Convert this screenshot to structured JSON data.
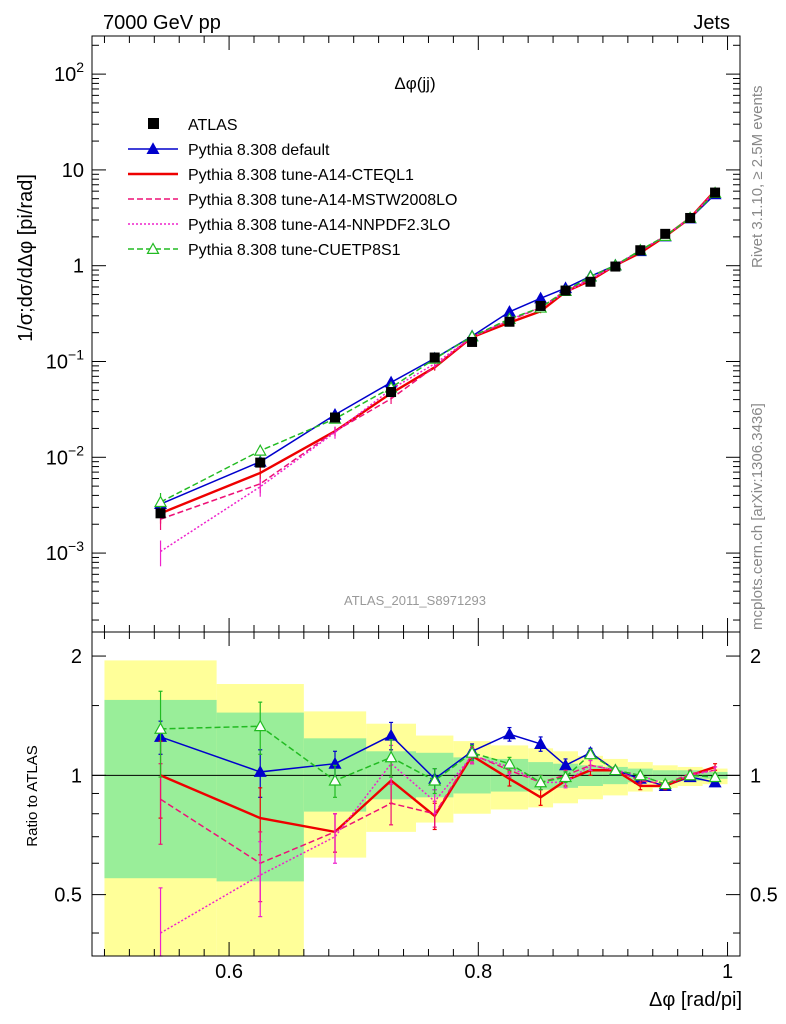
{
  "header": {
    "left": "7000 GeV pp",
    "right": "Jets"
  },
  "side_labels": {
    "rivet": "Rivet 3.1.10, ≥ 2.5M events",
    "source": "mcplots.cern.ch [arXiv:1306.3436]"
  },
  "analysis_id": "ATLAS_2011_S8971293",
  "chart_data": {
    "type": "line",
    "title": "Δφ(jj)",
    "ylabel": "1/σ;dσ/dΔφ [pi/rad]",
    "xlabel": "Δφ [rad/pi]",
    "ratio_ylabel": "Ratio to ATLAS",
    "xlim": [
      0.49,
      1.01
    ],
    "ylim": [
      0.00015,
      250
    ],
    "yscale": "log",
    "ratio_ylim": [
      0.35,
      2.3
    ],
    "ratio_yscale": "log",
    "x_ticks": [
      "0.6",
      "0.8",
      "1"
    ],
    "x_tick_values": [
      0.6,
      0.8,
      1.0
    ],
    "y_ticks": [
      "10^-3",
      "10^-2",
      "10^-1",
      "1",
      "10",
      "10^2"
    ],
    "y_tick_values": [
      0.001,
      0.01,
      0.1,
      1,
      10,
      100
    ],
    "ratio_ticks": [
      "0.5",
      "1",
      "2"
    ],
    "ratio_tick_values": [
      0.5,
      1,
      2
    ],
    "legend_position": "top-left",
    "x": [
      0.545,
      0.625,
      0.685,
      0.73,
      0.765,
      0.795,
      0.825,
      0.85,
      0.87,
      0.89,
      0.91,
      0.93,
      0.95,
      0.97,
      0.99
    ],
    "bins": [
      [
        0.5,
        0.59
      ],
      [
        0.59,
        0.66
      ],
      [
        0.66,
        0.71
      ],
      [
        0.71,
        0.75
      ],
      [
        0.75,
        0.78
      ],
      [
        0.78,
        0.81
      ],
      [
        0.81,
        0.84
      ],
      [
        0.84,
        0.86
      ],
      [
        0.86,
        0.88
      ],
      [
        0.88,
        0.9
      ],
      [
        0.9,
        0.92
      ],
      [
        0.92,
        0.94
      ],
      [
        0.94,
        0.96
      ],
      [
        0.96,
        0.98
      ],
      [
        0.98,
        1.0
      ]
    ],
    "data": {
      "name": "ATLAS",
      "values": [
        0.0026,
        0.0088,
        0.026,
        0.048,
        0.11,
        0.16,
        0.26,
        0.38,
        0.55,
        0.68,
        0.98,
        1.45,
        2.15,
        3.15,
        5.8
      ]
    },
    "band_inner": [
      [
        0.55,
        1.55
      ],
      [
        0.54,
        1.44
      ],
      [
        0.81,
        1.24
      ],
      [
        0.87,
        1.15
      ],
      [
        0.88,
        1.14
      ],
      [
        0.9,
        1.11
      ],
      [
        0.91,
        1.1
      ],
      [
        0.92,
        1.08
      ],
      [
        0.93,
        1.07
      ],
      [
        0.94,
        1.06
      ],
      [
        0.95,
        1.05
      ],
      [
        0.96,
        1.04
      ],
      [
        0.97,
        1.03
      ],
      [
        0.97,
        1.03
      ],
      [
        0.98,
        1.02
      ]
    ],
    "band_outer": [
      [
        0.35,
        1.95
      ],
      [
        0.35,
        1.7
      ],
      [
        0.62,
        1.45
      ],
      [
        0.72,
        1.35
      ],
      [
        0.76,
        1.26
      ],
      [
        0.8,
        1.22
      ],
      [
        0.82,
        1.19
      ],
      [
        0.83,
        1.17
      ],
      [
        0.85,
        1.15
      ],
      [
        0.87,
        1.12
      ],
      [
        0.89,
        1.1
      ],
      [
        0.91,
        1.08
      ],
      [
        0.93,
        1.06
      ],
      [
        0.94,
        1.05
      ],
      [
        0.95,
        1.04
      ]
    ],
    "series": [
      {
        "name": "Pythia 8.308 default",
        "color": "#0000cc",
        "style": "solid",
        "marker": "triangle-filled",
        "ratio": [
          1.25,
          1.02,
          1.07,
          1.26,
          0.98,
          1.15,
          1.27,
          1.2,
          1.06,
          1.14,
          1.03,
          0.98,
          0.94,
          0.99,
          0.96
        ],
        "ratio_err": [
          0.12,
          0.14,
          0.08,
          0.1,
          0.06,
          0.05,
          0.05,
          0.05,
          0.04,
          0.03,
          0.02,
          0.02,
          0.02,
          0.02,
          0.02
        ]
      },
      {
        "name": "Pythia 8.308 tune-A14-CTEQL1",
        "color": "#ee0000",
        "style": "solid-thick",
        "marker": "none",
        "ratio": [
          1.0,
          0.78,
          0.72,
          0.97,
          0.79,
          1.12,
          0.98,
          0.88,
          0.97,
          1.03,
          1.03,
          0.94,
          0.94,
          1.0,
          1.05
        ],
        "ratio_err": [
          0.22,
          0.15,
          0.08,
          0.12,
          0.06,
          0.05,
          0.04,
          0.04,
          0.03,
          0.03,
          0.02,
          0.02,
          0.02,
          0.02,
          0.02
        ]
      },
      {
        "name": "Pythia 8.308 tune-A14-MSTW2008LO",
        "color": "#ee1177",
        "style": "dashed",
        "marker": "none",
        "ratio": [
          0.87,
          0.6,
          0.72,
          0.85,
          0.8,
          1.13,
          1.03,
          0.96,
          1.0,
          1.06,
          1.03,
          0.97,
          0.95,
          1.01,
          1.03
        ],
        "ratio_err": [
          0.2,
          0.12,
          0.08,
          0.1,
          0.06,
          0.05,
          0.04,
          0.04,
          0.03,
          0.03,
          0.02,
          0.02,
          0.02,
          0.02,
          0.02
        ]
      },
      {
        "name": "Pythia 8.308 tune-A14-NNPDF2.3LO",
        "color": "#ee22cc",
        "style": "dotted",
        "marker": "none",
        "ratio": [
          0.4,
          0.56,
          0.7,
          1.07,
          0.86,
          1.12,
          1.05,
          0.96,
          0.96,
          1.06,
          1.03,
          1.0,
          0.95,
          1.0,
          1.03
        ],
        "ratio_err": [
          0.12,
          0.12,
          0.1,
          0.12,
          0.06,
          0.05,
          0.04,
          0.04,
          0.03,
          0.03,
          0.02,
          0.02,
          0.02,
          0.02,
          0.02
        ]
      },
      {
        "name": "Pythia 8.308 tune-CUETP8S1",
        "color": "#22bb22",
        "style": "dashed",
        "marker": "triangle-open",
        "ratio": [
          1.31,
          1.33,
          0.97,
          1.11,
          0.97,
          1.14,
          1.07,
          0.96,
          0.99,
          1.13,
          1.03,
          1.0,
          0.95,
          1.0,
          0.99
        ],
        "ratio_err": [
          0.32,
          0.2,
          0.09,
          0.12,
          0.07,
          0.05,
          0.04,
          0.04,
          0.03,
          0.03,
          0.02,
          0.02,
          0.02,
          0.02,
          0.02
        ]
      }
    ]
  }
}
